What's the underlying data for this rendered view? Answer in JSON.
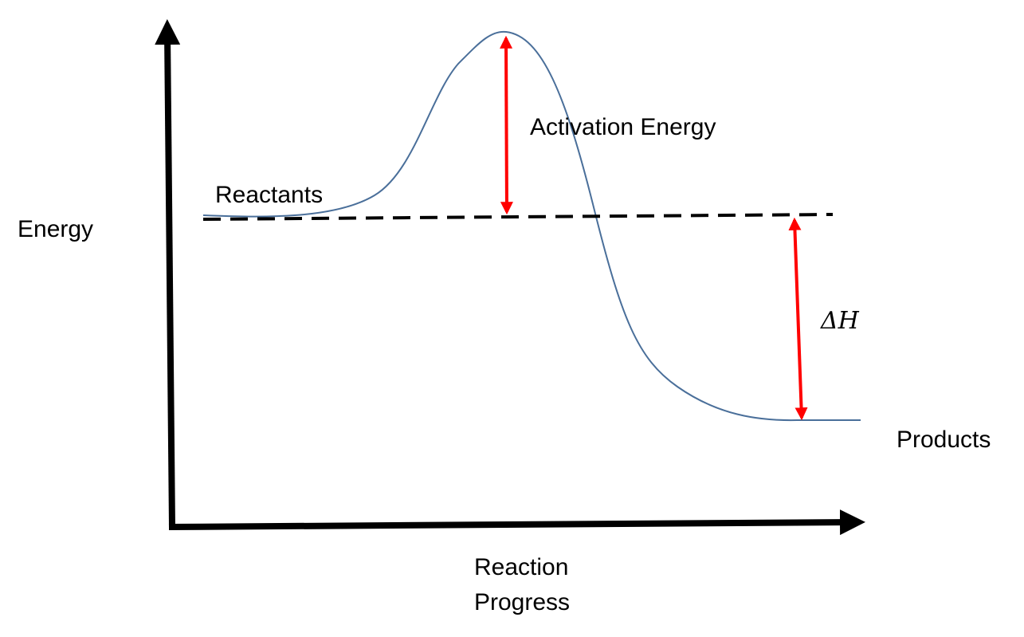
{
  "labels": {
    "y_axis": "Energy",
    "reactants": "Reactants",
    "activation_energy": "Activation Energy",
    "delta_h": "ΔH",
    "products": "Products",
    "x_axis": [
      "Reaction",
      "Progress"
    ]
  }
}
